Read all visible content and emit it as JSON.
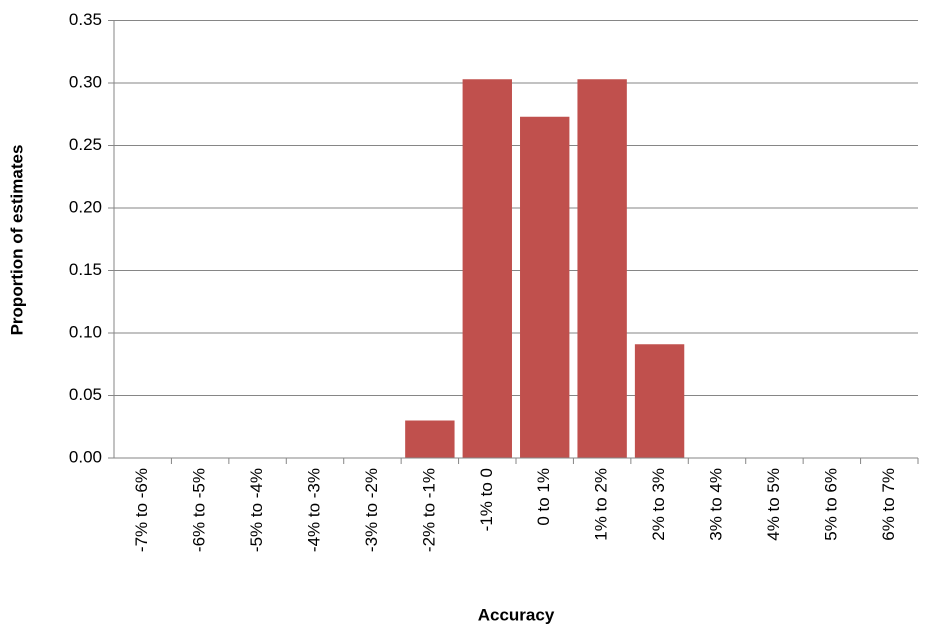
{
  "chart_data": {
    "type": "bar",
    "x_label": "Accuracy",
    "y_label": "Proportion of estimates",
    "categories": [
      "-7% to -6%",
      "-6% to -5%",
      "-5% to -4%",
      "-4% to -3%",
      "-3% to -2%",
      "-2% to -1%",
      "-1% to 0",
      "0 to 1%",
      "1% to 2%",
      "2% to 3%",
      "3% to 4%",
      "4% to 5%",
      "5% to 6%",
      "6% to 7%"
    ],
    "values": [
      0,
      0,
      0,
      0,
      0,
      0.03,
      0.303,
      0.273,
      0.303,
      0.091,
      0,
      0,
      0,
      0
    ],
    "color": "#c0504d",
    "ylim": [
      0,
      0.35
    ],
    "yticks": [
      {
        "value": 0,
        "label": "0.00"
      },
      {
        "value": 0.05,
        "label": "0.05"
      },
      {
        "value": 0.1,
        "label": "0.10"
      },
      {
        "value": 0.15,
        "label": "0.15"
      },
      {
        "value": 0.2,
        "label": "0.20"
      },
      {
        "value": 0.25,
        "label": "0.25"
      },
      {
        "value": 0.3,
        "label": "0.30"
      },
      {
        "value": 0.35,
        "label": "0.35"
      }
    ],
    "grid": true
  }
}
